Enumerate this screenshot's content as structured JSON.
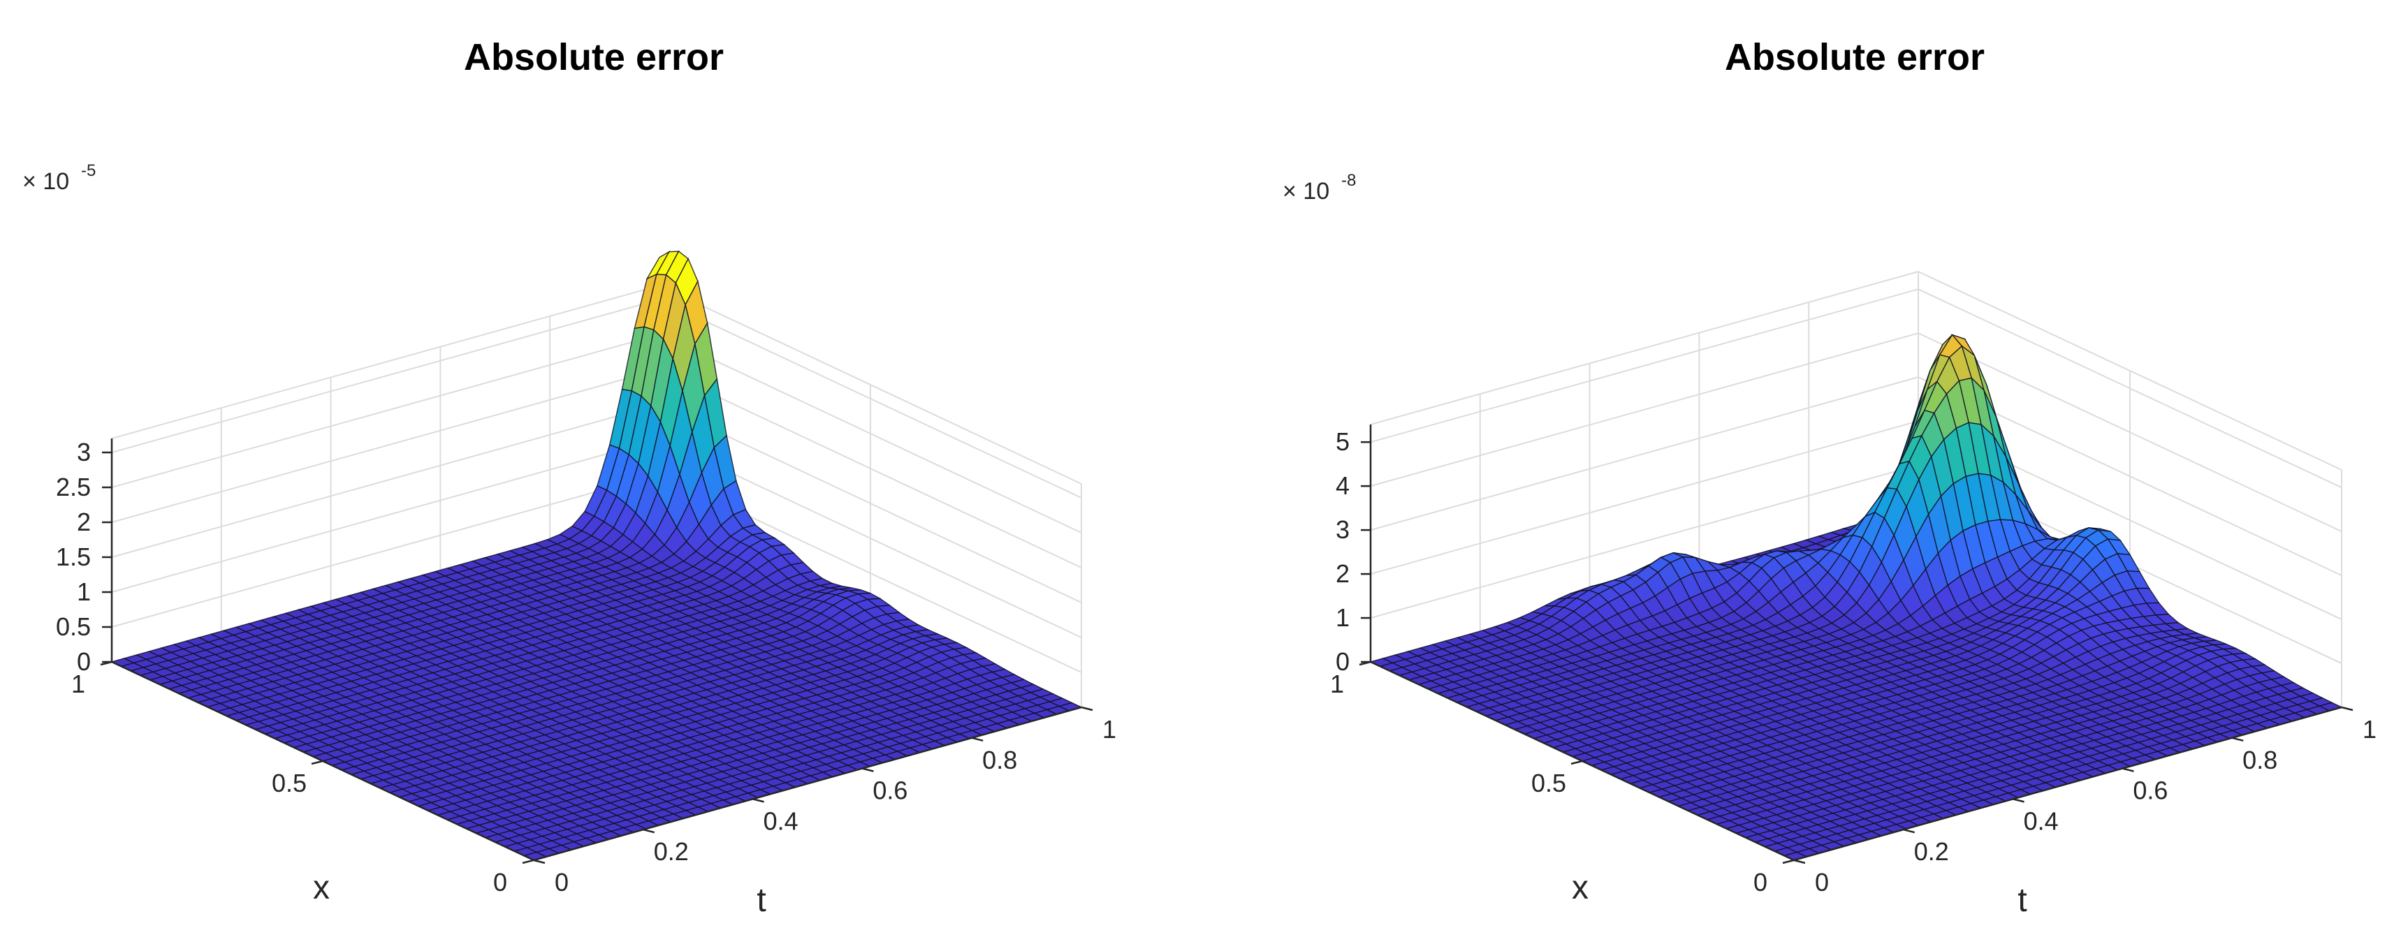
{
  "chart_data": [
    {
      "type": "surface",
      "title": "Absolute error",
      "xlabel": "t",
      "ylabel": "x",
      "zlabel": "",
      "xlim": [
        0,
        1
      ],
      "ylim": [
        0,
        1
      ],
      "zlim": [
        0,
        3.2
      ],
      "x_ticks": [
        "0",
        "0.2",
        "0.4",
        "0.6",
        "0.8",
        "1"
      ],
      "y_ticks": [
        "0",
        "0.5",
        "1"
      ],
      "z_ticks": [
        "0",
        "0.5",
        "1",
        "1.5",
        "2",
        "2.5",
        "3"
      ],
      "z_exponent_base": "× 10",
      "z_exponent": "-5",
      "grid": true,
      "colormap": "parula",
      "peaks": [
        {
          "t": 1.0,
          "x": 1.0,
          "z": 3.4,
          "st": 0.06,
          "sx": 0.09
        },
        {
          "t": 1.0,
          "x": 0.9,
          "z": 1.5,
          "st": 0.05,
          "sx": 0.05
        },
        {
          "t": 0.98,
          "x": 0.72,
          "z": 0.35,
          "st": 0.05,
          "sx": 0.06
        },
        {
          "t": 0.97,
          "x": 0.5,
          "z": 0.25,
          "st": 0.05,
          "sx": 0.06
        },
        {
          "t": 0.96,
          "x": 0.3,
          "z": 0.12,
          "st": 0.05,
          "sx": 0.08
        }
      ]
    },
    {
      "type": "surface",
      "title": "Absolute error",
      "xlabel": "t",
      "ylabel": "x",
      "zlabel": "",
      "xlim": [
        0,
        1
      ],
      "ylim": [
        0,
        1
      ],
      "zlim": [
        0,
        5.4
      ],
      "x_ticks": [
        "0",
        "0.2",
        "0.4",
        "0.6",
        "0.8",
        "1"
      ],
      "y_ticks": [
        "0",
        "0.5",
        "1"
      ],
      "z_ticks": [
        "0",
        "1",
        "2",
        "3",
        "4",
        "5"
      ],
      "z_exponent_base": "× 10",
      "z_exponent": "-8",
      "grid": true,
      "colormap": "parula",
      "peaks": [
        {
          "t": 0.9,
          "x": 0.78,
          "z": 5.0,
          "st": 0.06,
          "sx": 0.07
        },
        {
          "t": 0.8,
          "x": 0.72,
          "z": 2.6,
          "st": 0.06,
          "sx": 0.05
        },
        {
          "t": 0.98,
          "x": 0.55,
          "z": 1.6,
          "st": 0.06,
          "sx": 0.07
        },
        {
          "t": 0.72,
          "x": 0.78,
          "z": 1.0,
          "st": 0.05,
          "sx": 0.06
        },
        {
          "t": 0.62,
          "x": 0.85,
          "z": 0.9,
          "st": 0.05,
          "sx": 0.05
        },
        {
          "t": 0.5,
          "x": 0.92,
          "z": 1.0,
          "st": 0.05,
          "sx": 0.04
        },
        {
          "t": 0.38,
          "x": 0.94,
          "z": 0.6,
          "st": 0.06,
          "sx": 0.05
        },
        {
          "t": 0.85,
          "x": 0.45,
          "z": 0.5,
          "st": 0.07,
          "sx": 0.08
        },
        {
          "t": 0.95,
          "x": 0.25,
          "z": 0.3,
          "st": 0.06,
          "sx": 0.08
        }
      ]
    }
  ]
}
